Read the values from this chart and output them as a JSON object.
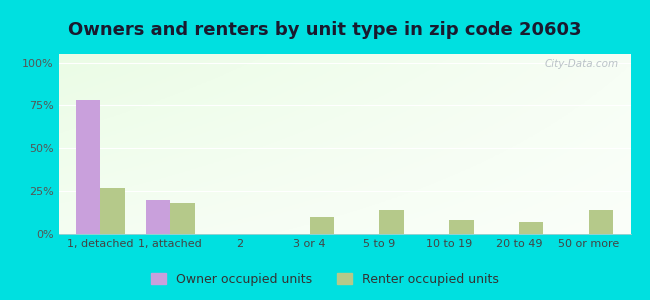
{
  "title": "Owners and renters by unit type in zip code 20603",
  "categories": [
    "1, detached",
    "1, attached",
    "2",
    "3 or 4",
    "5 to 9",
    "10 to 19",
    "20 to 49",
    "50 or more"
  ],
  "owner_values": [
    78,
    20,
    0,
    0,
    0,
    0,
    0,
    0
  ],
  "renter_values": [
    27,
    18,
    0,
    10,
    14,
    8,
    7,
    14
  ],
  "owner_color": "#c9a0dc",
  "renter_color": "#b5c98a",
  "background_outer": "#00e0e0",
  "yticks": [
    0,
    25,
    50,
    75,
    100
  ],
  "ytick_labels": [
    "0%",
    "25%",
    "50%",
    "75%",
    "100%"
  ],
  "ylim": [
    0,
    105
  ],
  "bar_width": 0.35,
  "legend_owner": "Owner occupied units",
  "legend_renter": "Renter occupied units",
  "watermark": "City-Data.com",
  "title_fontsize": 13,
  "tick_fontsize": 8,
  "legend_fontsize": 9
}
